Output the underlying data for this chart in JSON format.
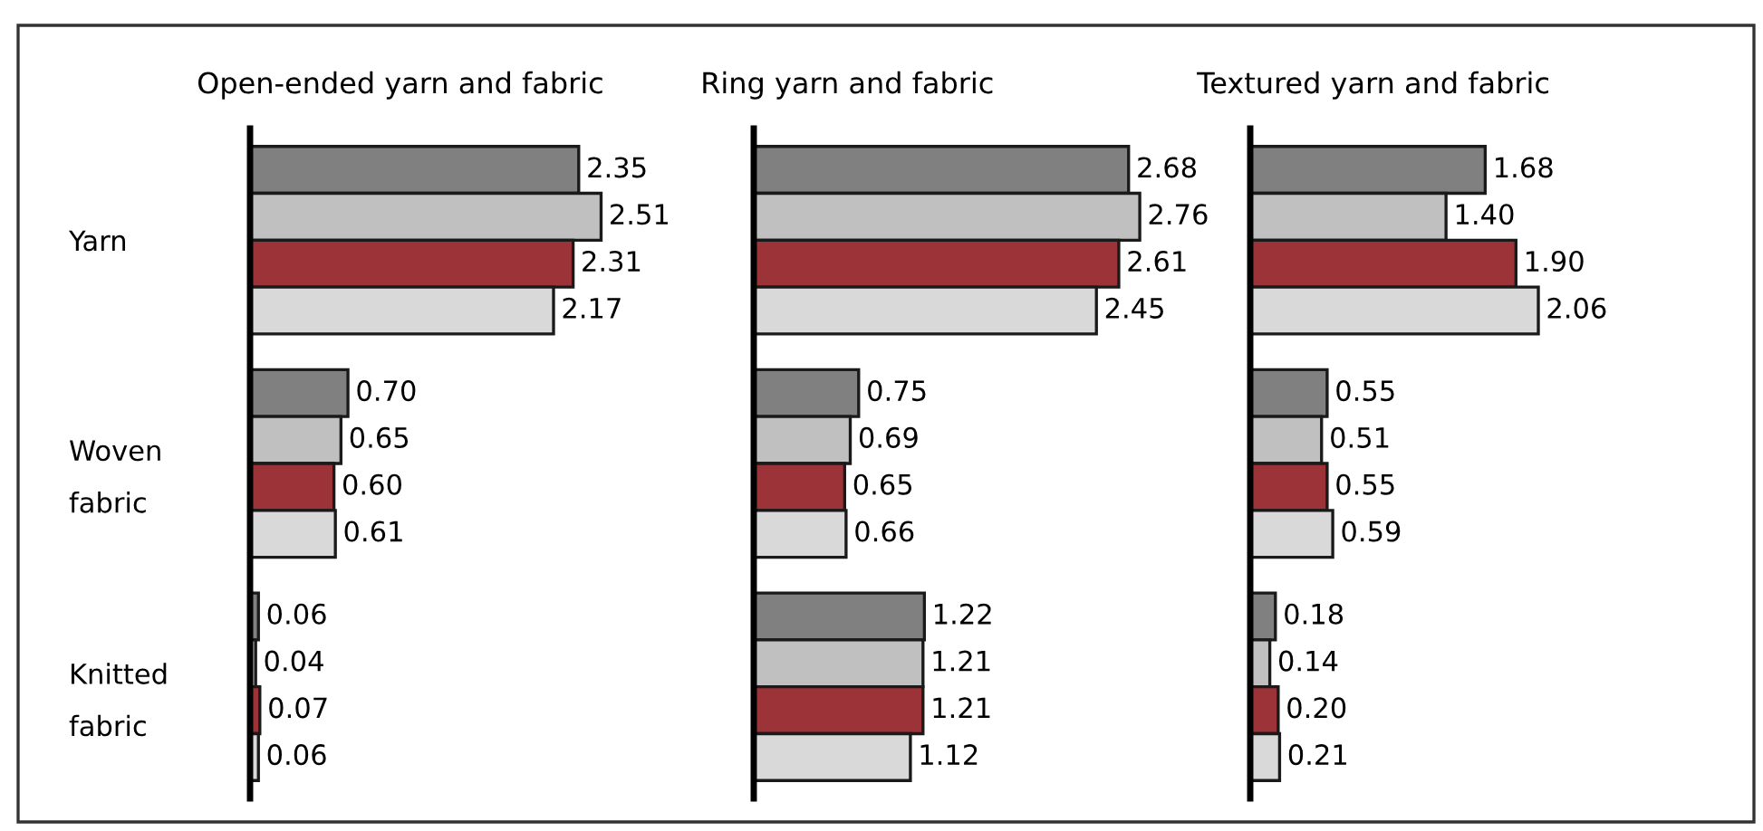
{
  "chart_data": [
    {
      "type": "bar",
      "orientation": "horizontal",
      "title": "Open-ended yarn and fabric",
      "categories": [
        "Yarn",
        "Woven\nfabric",
        "Knitted\nfabric"
      ],
      "tick_labels": "y",
      "series": [
        {
          "color": "#808080",
          "values": [
            2.35,
            0.7,
            0.06
          ],
          "value_labels": [
            "2.35",
            "0.70",
            "0.06"
          ]
        },
        {
          "color": "#c0c0c0",
          "values": [
            2.51,
            0.65,
            0.04
          ],
          "value_labels": [
            "2.51",
            "0.65",
            "0.04"
          ]
        },
        {
          "color": "#9b3339",
          "values": [
            2.31,
            0.6,
            0.07
          ],
          "value_labels": [
            "2.31",
            "0.60",
            "0.07"
          ]
        },
        {
          "color": "#d9d9d9",
          "values": [
            2.17,
            0.61,
            0.06
          ],
          "value_labels": [
            "2.17",
            "0.61",
            "0.06"
          ]
        }
      ]
    },
    {
      "type": "bar",
      "orientation": "horizontal",
      "title": "Ring yarn and fabric",
      "tick_labels": false,
      "series": [
        {
          "color": "#808080",
          "values": [
            2.68,
            0.75,
            1.22
          ],
          "value_labels": [
            "2.68",
            "0.75",
            "1.22"
          ]
        },
        {
          "color": "#c0c0c0",
          "values": [
            2.76,
            0.69,
            1.21
          ],
          "value_labels": [
            "2.76",
            "0.69",
            "1.21"
          ]
        },
        {
          "color": "#9b3339",
          "values": [
            2.61,
            0.65,
            1.21
          ],
          "value_labels": [
            "2.61",
            "0.65",
            "1.21"
          ]
        },
        {
          "color": "#d9d9d9",
          "values": [
            2.45,
            0.66,
            1.12
          ],
          "value_labels": [
            "2.45",
            "0.66",
            "1.12"
          ]
        }
      ]
    },
    {
      "type": "bar",
      "orientation": "horizontal",
      "title": "Textured yarn and fabric",
      "tick_labels": false,
      "series": [
        {
          "color": "#808080",
          "values": [
            1.68,
            0.55,
            0.18
          ],
          "value_labels": [
            "1.68",
            "0.55",
            "0.18"
          ]
        },
        {
          "color": "#c0c0c0",
          "values": [
            1.4,
            0.51,
            0.14
          ],
          "value_labels": [
            "1.40",
            "0.51",
            "0.14"
          ]
        },
        {
          "color": "#9b3339",
          "values": [
            1.9,
            0.55,
            0.2
          ],
          "value_labels": [
            "1.90",
            "0.55",
            "0.20"
          ]
        },
        {
          "color": "#d9d9d9",
          "values": [
            2.06,
            0.59,
            0.21
          ],
          "value_labels": [
            "2.06",
            "0.59",
            "0.21"
          ]
        }
      ]
    }
  ]
}
